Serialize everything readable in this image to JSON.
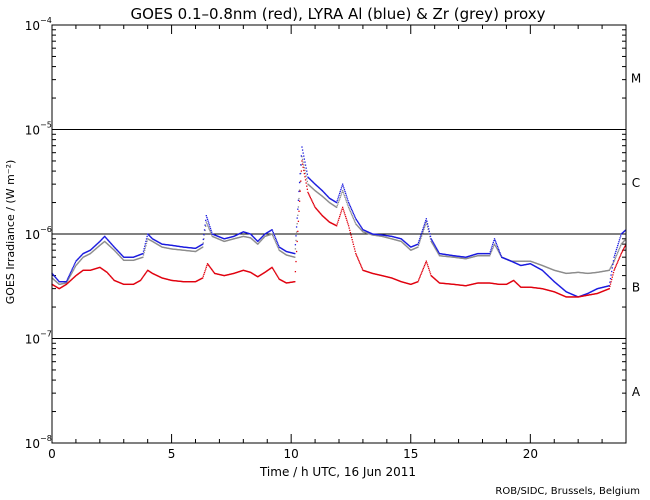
{
  "chart_data": {
    "type": "scatter",
    "title": "GOES 0.1–0.8nm (red), LYRA Al (blue) & Zr (grey) proxy",
    "xlabel": "Time / h UTC, 16 Jun 2011",
    "ylabel": "GOES Irradiance / (W m⁻²)",
    "xlim": [
      0,
      24
    ],
    "ylim": [
      1e-08,
      0.0001
    ],
    "yscale": "log",
    "x_ticks": [
      {
        "value": 0,
        "label": "0"
      },
      {
        "value": 5,
        "label": "5"
      },
      {
        "value": 10,
        "label": "10"
      },
      {
        "value": 15,
        "label": "15"
      },
      {
        "value": 20,
        "label": "20"
      }
    ],
    "y_ticks": [
      {
        "exp": -8,
        "base": "10",
        "sup": "−8"
      },
      {
        "exp": -7,
        "base": "10",
        "sup": "−7"
      },
      {
        "exp": -6,
        "base": "10",
        "sup": "−6"
      },
      {
        "exp": -5,
        "base": "10",
        "sup": "−5"
      },
      {
        "exp": -4,
        "base": "10",
        "sup": "−4"
      }
    ],
    "reference_lines": [
      1e-07,
      1e-06,
      1e-05
    ],
    "flare_classes": [
      {
        "label": "A",
        "log_y": -7.5
      },
      {
        "label": "B",
        "log_y": -6.5
      },
      {
        "label": "C",
        "log_y": -5.5
      },
      {
        "label": "M",
        "log_y": -4.5
      }
    ],
    "series": [
      {
        "name": "GOES 0.1–0.8nm",
        "color": "#e0000e",
        "points": [
          [
            0,
            3.3e-07
          ],
          [
            0.3,
            3e-07
          ],
          [
            0.6,
            3.3e-07
          ],
          [
            1.0,
            4e-07
          ],
          [
            1.3,
            4.5e-07
          ],
          [
            1.6,
            4.5e-07
          ],
          [
            2.0,
            4.8e-07
          ],
          [
            2.3,
            4.3e-07
          ],
          [
            2.6,
            3.6e-07
          ],
          [
            3.0,
            3.3e-07
          ],
          [
            3.4,
            3.3e-07
          ],
          [
            3.7,
            3.6e-07
          ],
          [
            4.0,
            4.5e-07
          ],
          [
            4.2,
            4.2e-07
          ],
          [
            4.6,
            3.8e-07
          ],
          [
            5.0,
            3.6e-07
          ],
          [
            5.5,
            3.5e-07
          ],
          [
            6.0,
            3.5e-07
          ],
          [
            6.3,
            3.8e-07
          ],
          [
            6.5,
            5.2e-07
          ],
          [
            6.8,
            4.2e-07
          ],
          [
            7.2,
            4e-07
          ],
          [
            7.6,
            4.2e-07
          ],
          [
            8.0,
            4.5e-07
          ],
          [
            8.3,
            4.3e-07
          ],
          [
            8.6,
            3.9e-07
          ],
          [
            8.9,
            4.3e-07
          ],
          [
            9.2,
            4.8e-07
          ],
          [
            9.5,
            3.7e-07
          ],
          [
            9.8,
            3.4e-07
          ],
          [
            10.15,
            3.5e-07
          ],
          [
            10.45,
            5e-06
          ],
          [
            10.7,
            2.5e-06
          ],
          [
            11.0,
            1.8e-06
          ],
          [
            11.3,
            1.5e-06
          ],
          [
            11.6,
            1.3e-06
          ],
          [
            11.9,
            1.2e-06
          ],
          [
            12.15,
            1.8e-06
          ],
          [
            12.4,
            1.2e-06
          ],
          [
            12.7,
            6.5e-07
          ],
          [
            13.0,
            4.5e-07
          ],
          [
            13.4,
            4.2e-07
          ],
          [
            13.8,
            4e-07
          ],
          [
            14.2,
            3.8e-07
          ],
          [
            14.6,
            3.5e-07
          ],
          [
            15.0,
            3.3e-07
          ],
          [
            15.3,
            3.5e-07
          ],
          [
            15.65,
            5.5e-07
          ],
          [
            15.85,
            4e-07
          ],
          [
            16.2,
            3.4e-07
          ],
          [
            16.8,
            3.3e-07
          ],
          [
            17.3,
            3.2e-07
          ],
          [
            17.8,
            3.4e-07
          ],
          [
            18.3,
            3.4e-07
          ],
          [
            18.7,
            3.3e-07
          ],
          [
            19.0,
            3.3e-07
          ],
          [
            19.3,
            3.6e-07
          ],
          [
            19.6,
            3.1e-07
          ],
          [
            20.0,
            3.1e-07
          ],
          [
            20.5,
            3e-07
          ],
          [
            21.0,
            2.8e-07
          ],
          [
            21.5,
            2.5e-07
          ],
          [
            22.0,
            2.5e-07
          ],
          [
            22.4,
            2.6e-07
          ],
          [
            22.8,
            2.7e-07
          ],
          [
            23.3,
            3e-07
          ],
          [
            23.5,
            4.5e-07
          ],
          [
            23.8,
            6.5e-07
          ],
          [
            24.0,
            8e-07
          ]
        ]
      },
      {
        "name": "LYRA Al proxy",
        "color": "#1a1adf",
        "points": [
          [
            0,
            4.2e-07
          ],
          [
            0.3,
            3.5e-07
          ],
          [
            0.6,
            3.5e-07
          ],
          [
            1.0,
            5.5e-07
          ],
          [
            1.3,
            6.5e-07
          ],
          [
            1.6,
            7e-07
          ],
          [
            2.0,
            8.5e-07
          ],
          [
            2.2,
            9.5e-07
          ],
          [
            2.6,
            7.5e-07
          ],
          [
            3.0,
            6e-07
          ],
          [
            3.4,
            6e-07
          ],
          [
            3.8,
            6.5e-07
          ],
          [
            4.0,
            1e-06
          ],
          [
            4.2,
            9e-07
          ],
          [
            4.6,
            8e-07
          ],
          [
            5.0,
            7.8e-07
          ],
          [
            5.5,
            7.5e-07
          ],
          [
            6.0,
            7.3e-07
          ],
          [
            6.3,
            8e-07
          ],
          [
            6.45,
            1.5e-06
          ],
          [
            6.7,
            1e-06
          ],
          [
            7.2,
            9e-07
          ],
          [
            7.6,
            9.5e-07
          ],
          [
            8.0,
            1.05e-06
          ],
          [
            8.3,
            1e-06
          ],
          [
            8.6,
            8.5e-07
          ],
          [
            8.9,
            1e-06
          ],
          [
            9.2,
            1.1e-06
          ],
          [
            9.5,
            7.5e-07
          ],
          [
            9.8,
            6.8e-07
          ],
          [
            10.15,
            6.5e-07
          ],
          [
            10.45,
            6.8e-06
          ],
          [
            10.7,
            3.5e-06
          ],
          [
            11.0,
            3e-06
          ],
          [
            11.3,
            2.6e-06
          ],
          [
            11.6,
            2.2e-06
          ],
          [
            11.9,
            2e-06
          ],
          [
            12.15,
            3e-06
          ],
          [
            12.4,
            2e-06
          ],
          [
            12.7,
            1.4e-06
          ],
          [
            13.0,
            1.1e-06
          ],
          [
            13.4,
            1e-06
          ],
          [
            13.8,
            9.8e-07
          ],
          [
            14.2,
            9.5e-07
          ],
          [
            14.6,
            9e-07
          ],
          [
            15.0,
            7.5e-07
          ],
          [
            15.3,
            8e-07
          ],
          [
            15.65,
            1.4e-06
          ],
          [
            15.85,
            9e-07
          ],
          [
            16.2,
            6.5e-07
          ],
          [
            16.8,
            6.2e-07
          ],
          [
            17.3,
            6e-07
          ],
          [
            17.8,
            6.5e-07
          ],
          [
            18.3,
            6.5e-07
          ],
          [
            18.5,
            9e-07
          ],
          [
            18.8,
            6e-07
          ],
          [
            19.2,
            5.5e-07
          ],
          [
            19.6,
            5e-07
          ],
          [
            20.0,
            5.2e-07
          ],
          [
            20.5,
            4.5e-07
          ],
          [
            21.0,
            3.5e-07
          ],
          [
            21.5,
            2.8e-07
          ],
          [
            22.0,
            2.5e-07
          ],
          [
            22.4,
            2.7e-07
          ],
          [
            22.8,
            3e-07
          ],
          [
            23.3,
            3.2e-07
          ],
          [
            23.5,
            6e-07
          ],
          [
            23.8,
            1e-06
          ],
          [
            24.0,
            1.1e-06
          ]
        ]
      },
      {
        "name": "LYRA Zr proxy",
        "color": "#8c8c8c",
        "points": [
          [
            0,
            3.8e-07
          ],
          [
            0.3,
            3.3e-07
          ],
          [
            0.6,
            3.4e-07
          ],
          [
            1.0,
            5e-07
          ],
          [
            1.3,
            6e-07
          ],
          [
            1.6,
            6.5e-07
          ],
          [
            2.0,
            7.8e-07
          ],
          [
            2.2,
            8.5e-07
          ],
          [
            2.6,
            7e-07
          ],
          [
            3.0,
            5.6e-07
          ],
          [
            3.4,
            5.6e-07
          ],
          [
            3.8,
            6e-07
          ],
          [
            4.0,
            9e-07
          ],
          [
            4.2,
            8.5e-07
          ],
          [
            4.6,
            7.5e-07
          ],
          [
            5.0,
            7.2e-07
          ],
          [
            5.5,
            7e-07
          ],
          [
            6.0,
            6.8e-07
          ],
          [
            6.3,
            7.5e-07
          ],
          [
            6.45,
            1.3e-06
          ],
          [
            6.7,
            9.5e-07
          ],
          [
            7.2,
            8.5e-07
          ],
          [
            7.6,
            9e-07
          ],
          [
            8.0,
            9.5e-07
          ],
          [
            8.3,
            9.2e-07
          ],
          [
            8.6,
            8e-07
          ],
          [
            8.9,
            9.5e-07
          ],
          [
            9.2,
            1e-06
          ],
          [
            9.5,
            7e-07
          ],
          [
            9.8,
            6.3e-07
          ],
          [
            10.15,
            6e-07
          ],
          [
            10.45,
            5.5e-06
          ],
          [
            10.7,
            3e-06
          ],
          [
            11.0,
            2.6e-06
          ],
          [
            11.3,
            2.3e-06
          ],
          [
            11.6,
            2e-06
          ],
          [
            11.9,
            1.8e-06
          ],
          [
            12.15,
            2.6e-06
          ],
          [
            12.4,
            1.8e-06
          ],
          [
            12.7,
            1.25e-06
          ],
          [
            13.0,
            1.05e-06
          ],
          [
            13.4,
            9.8e-07
          ],
          [
            13.8,
            9.5e-07
          ],
          [
            14.2,
            9e-07
          ],
          [
            14.6,
            8.5e-07
          ],
          [
            15.0,
            7e-07
          ],
          [
            15.3,
            7.5e-07
          ],
          [
            15.65,
            1.3e-06
          ],
          [
            15.85,
            8.5e-07
          ],
          [
            16.2,
            6.2e-07
          ],
          [
            16.8,
            6e-07
          ],
          [
            17.3,
            5.8e-07
          ],
          [
            17.8,
            6.2e-07
          ],
          [
            18.3,
            6.2e-07
          ],
          [
            18.5,
            8e-07
          ],
          [
            18.8,
            6e-07
          ],
          [
            19.2,
            5.5e-07
          ],
          [
            19.6,
            5.5e-07
          ],
          [
            20.0,
            5.5e-07
          ],
          [
            20.5,
            5e-07
          ],
          [
            21.0,
            4.5e-07
          ],
          [
            21.5,
            4.2e-07
          ],
          [
            22.0,
            4.3e-07
          ],
          [
            22.4,
            4.2e-07
          ],
          [
            22.8,
            4.3e-07
          ],
          [
            23.3,
            4.5e-07
          ],
          [
            23.5,
            5.5e-07
          ],
          [
            23.8,
            8e-07
          ],
          [
            24.0,
            9e-07
          ]
        ]
      }
    ]
  },
  "credit": "ROB/SIDC, Brussels, Belgium"
}
